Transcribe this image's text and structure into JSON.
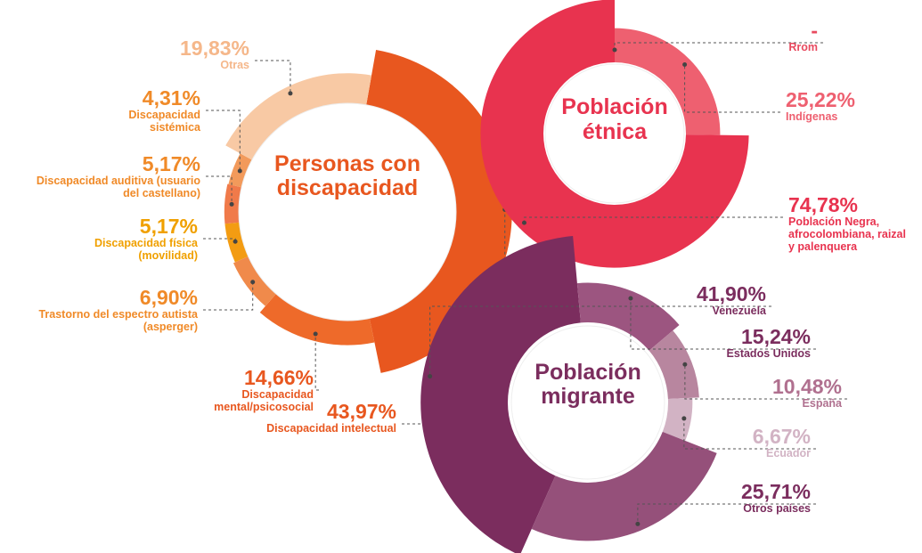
{
  "chart_data": [
    {
      "type": "pie",
      "title": "Personas con discapacidad",
      "categories": [
        "Discapacidad intelectual",
        "Discapacidad mental/psicosocial",
        "Trastorno del espectro autista (asperger)",
        "Discapacidad física (movilidad)",
        "Discapacidad auditiva (usuario del castellano)",
        "Discapacidad sistémica",
        "Otras"
      ],
      "values": [
        43.97,
        14.66,
        6.9,
        5.17,
        5.17,
        4.31,
        19.83
      ],
      "value_labels": [
        "43,97%",
        "14,66%",
        "6,90%",
        "5,17%",
        "5,17%",
        "4,31%",
        "19,83%"
      ],
      "colors": [
        "#e8571f",
        "#ee6a2a",
        "#f08a4b",
        "#f39c12",
        "#f07a4a",
        "#f29a5b",
        "#f8c9a4"
      ]
    },
    {
      "type": "pie",
      "title": "Población étnica",
      "categories": [
        "Rrom",
        "Indígenas",
        "Población Negra, afrocolombiana, raizal y palenquera"
      ],
      "values": [
        null,
        25.22,
        74.78
      ],
      "value_labels": [
        "-",
        "25,22%",
        "74,78%"
      ],
      "colors": [
        "#e84a5f",
        "#ee6070",
        "#e8334f"
      ]
    },
    {
      "type": "pie",
      "title": "Población migrante",
      "categories": [
        "Venezuela",
        "Estados Unidos",
        "España",
        "Ecuador",
        "Otros países"
      ],
      "values": [
        41.9,
        15.24,
        10.48,
        6.67,
        25.71
      ],
      "value_labels": [
        "41,90%",
        "15,24%",
        "10,48%",
        "6,67%",
        "25,71%"
      ],
      "colors": [
        "#7b2d5e",
        "#9c5580",
        "#b8869f",
        "#d2b3c4",
        "#95507a"
      ]
    }
  ]
}
